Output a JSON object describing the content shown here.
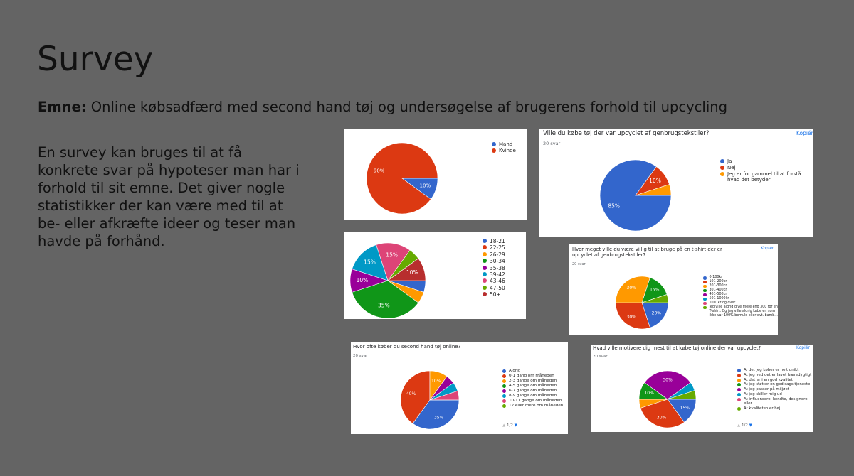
{
  "slide": {
    "title": "Survey",
    "subject_label": "Emne:",
    "subject": "Online købsadfærd med second hand tøj og undersøgelse af brugerens forhold til upcycling",
    "body": "En survey kan bruges til at få konkrete svar på hypoteser man har i forhold til sit emne. Det giver nogle statistikker der kan være med til at be- eller afkræfte ideer og teser man havde på forhånd."
  },
  "chart_data": [
    {
      "type": "pie",
      "categories": [
        "Mand",
        "Kvinde"
      ],
      "values": [
        10,
        90
      ],
      "value_labels": [
        "10%",
        "90%"
      ],
      "colors": [
        "#3366cc",
        "#dc3912"
      ]
    },
    {
      "type": "pie",
      "title": "Ville du købe tøj der var upcyclet af genbrugstekstiler?",
      "subtitle": "20 svar",
      "copy_label": "Kopiér",
      "categories": [
        "Ja",
        "Nej",
        "Jeg er for gammel til at forstå hvad det betyder"
      ],
      "values": [
        85,
        10,
        5
      ],
      "value_labels": [
        "85%",
        "10%",
        null
      ],
      "colors": [
        "#3366cc",
        "#dc3912",
        "#ff9900"
      ]
    },
    {
      "type": "pie",
      "categories": [
        "18-21",
        "22-25",
        "26-29",
        "30-34",
        "35-38",
        "39-42",
        "43-46",
        "47-50",
        "50+"
      ],
      "values": [
        5,
        0,
        5,
        35,
        10,
        15,
        15,
        5,
        10
      ],
      "value_labels": [
        null,
        null,
        null,
        "35%",
        "10%",
        "15%",
        "15%",
        null,
        "10%"
      ],
      "colors": [
        "#3366cc",
        "#dc3912",
        "#ff9900",
        "#109618",
        "#990099",
        "#0099c6",
        "#dd4477",
        "#66aa00",
        "#b82e2e"
      ]
    },
    {
      "type": "pie",
      "title": "Hvor meget ville du være villig til at bruge på en t-shirt der er upcyclet af genbrugstekstiler?",
      "subtitle": "20 svar",
      "copy_label": "Kopiér",
      "categories": [
        "0-100kr",
        "101-200kr",
        "201-300kr",
        "301-400kr",
        "401-500kr",
        "501-1000kr",
        "1001kr og over",
        "Jeg ville aldrig give mere end 300 for en T-shirt. Og jeg ville aldrig købe en som ikke var 100% bomuld eller evt. bamb..."
      ],
      "values": [
        20,
        30,
        30,
        15,
        0,
        0,
        0,
        5
      ],
      "value_labels": [
        "20%",
        "30%",
        "30%",
        "15%",
        null,
        null,
        null,
        null
      ],
      "colors": [
        "#3366cc",
        "#dc3912",
        "#ff9900",
        "#109618",
        "#990099",
        "#0099c6",
        "#dd4477",
        "#66aa00"
      ]
    },
    {
      "type": "pie",
      "title": "Hvor ofte køber du second hand tøj online?",
      "subtitle": "20 svar",
      "pagination": "1/2",
      "categories": [
        "Aldrig",
        "0-1 gang om måneden",
        "2-3 gange om måneden",
        "4-5 gange om måneden",
        "6-7 gange om måneden",
        "8-9 gange om måneden",
        "10-11 gange om måneden",
        "12 eller mere om måneden"
      ],
      "values": [
        35,
        40,
        10,
        0,
        5,
        5,
        5,
        0
      ],
      "value_labels": [
        "35%",
        "40%",
        "10%",
        null,
        null,
        null,
        null,
        null
      ],
      "colors": [
        "#3366cc",
        "#dc3912",
        "#ff9900",
        "#109618",
        "#990099",
        "#0099c6",
        "#dd4477",
        "#66aa00"
      ]
    },
    {
      "type": "pie",
      "title": "Hvad ville motivere dig mest til at købe tøj online der var upcyclet?",
      "subtitle": "20 svar",
      "copy_label": "Kopiér",
      "pagination": "1/2",
      "categories": [
        "Al det jeg køber er helt unikt",
        "At jeg ved det er lavet bæredygtigt",
        "At det er i en god kvalitet",
        "At jeg støtter en god sags tjeneste",
        "At jeg passer på miljøet",
        "At jeg skiller mig ud",
        "At influencere, kendte, designere eller...",
        "At kvaliteten er høj"
      ],
      "values": [
        15,
        30,
        5,
        10,
        30,
        5,
        0,
        5
      ],
      "value_labels": [
        "15%",
        "30%",
        null,
        "10%",
        "30%",
        null,
        null,
        null
      ],
      "colors": [
        "#3366cc",
        "#dc3912",
        "#ff9900",
        "#109618",
        "#990099",
        "#0099c6",
        "#dd4477",
        "#66aa00"
      ]
    }
  ]
}
